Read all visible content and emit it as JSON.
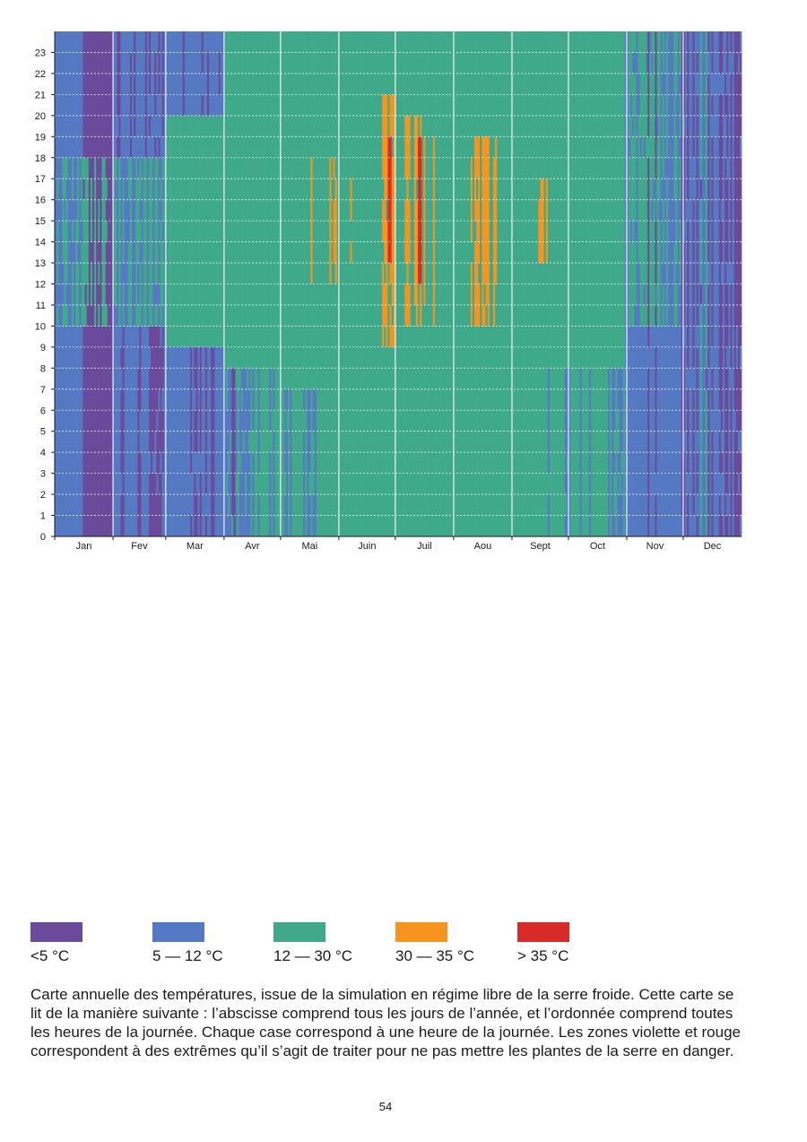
{
  "chart_data": {
    "type": "heatmap",
    "title": "",
    "xlabel": "",
    "ylabel": "",
    "x_categories": [
      "Jan",
      "Fev",
      "Mar",
      "Avr",
      "Mai",
      "Juin",
      "Juil",
      "Aou",
      "Sept",
      "Oct",
      "Nov",
      "Dec"
    ],
    "y_ticks": [
      0,
      1,
      2,
      3,
      4,
      5,
      6,
      7,
      8,
      9,
      10,
      11,
      12,
      13,
      14,
      15,
      16,
      17,
      18,
      19,
      20,
      21,
      22,
      23
    ],
    "x_range": [
      1,
      365
    ],
    "y_range": [
      0,
      23
    ],
    "grid": "vertical solid lines between months, horizontal dotted lines at each hour",
    "legend_position": "below",
    "classes": [
      {
        "label": "<5 °C",
        "color": "#6b4a9b"
      },
      {
        "label": "5 — 12 °C",
        "color": "#5579c2"
      },
      {
        "label": "12 — 30 °C",
        "color": "#3fa98a"
      },
      {
        "label": "30 — 35 °C",
        "color": "#f5941f"
      },
      {
        "label": "> 35 °C",
        "color": "#d92a2a"
      }
    ],
    "regions": [
      {
        "class": 1,
        "day_start": 1,
        "day_end": 16,
        "hour_start": 0,
        "hour_end": 23
      },
      {
        "class": 0,
        "day_start": 16,
        "day_end": 31,
        "hour_start": 0,
        "hour_end": 23
      },
      {
        "class": 2,
        "day_start": 1,
        "day_end": 31,
        "hour_start": 10,
        "hour_end": 17,
        "density": 0.45
      },
      {
        "class": 0,
        "day_start": 17,
        "day_end": 31,
        "hour_start": 10,
        "hour_end": 17,
        "density": 0.25
      },
      {
        "class": 1,
        "day_start": 32,
        "day_end": 59,
        "hour_start": 0,
        "hour_end": 23
      },
      {
        "class": 0,
        "day_start": 32,
        "day_end": 59,
        "hour_start": 0,
        "hour_end": 9,
        "density": 0.55
      },
      {
        "class": 0,
        "day_start": 32,
        "day_end": 59,
        "hour_start": 18,
        "hour_end": 23,
        "density": 0.2
      },
      {
        "class": 2,
        "day_start": 32,
        "day_end": 59,
        "hour_start": 10,
        "hour_end": 17,
        "density": 0.6
      },
      {
        "class": 2,
        "day_start": 60,
        "day_end": 90,
        "hour_start": 9,
        "hour_end": 19
      },
      {
        "class": 1,
        "day_start": 60,
        "day_end": 90,
        "hour_start": 0,
        "hour_end": 8
      },
      {
        "class": 0,
        "day_start": 70,
        "day_end": 90,
        "hour_start": 0,
        "hour_end": 8,
        "density": 0.35
      },
      {
        "class": 1,
        "day_start": 60,
        "day_end": 90,
        "hour_start": 20,
        "hour_end": 23
      },
      {
        "class": 0,
        "day_start": 60,
        "day_end": 90,
        "hour_start": 20,
        "hour_end": 23,
        "density": 0.15
      },
      {
        "class": 2,
        "day_start": 91,
        "day_end": 120,
        "hour_start": 7,
        "hour_end": 23
      },
      {
        "class": 1,
        "day_start": 91,
        "day_end": 120,
        "hour_start": 0,
        "hour_end": 7,
        "density": 0.55
      },
      {
        "class": 0,
        "day_start": 91,
        "day_end": 100,
        "hour_start": 0,
        "hour_end": 7,
        "density": 0.3
      },
      {
        "class": 2,
        "day_start": 121,
        "day_end": 303,
        "hour_start": 0,
        "hour_end": 23
      },
      {
        "class": 1,
        "day_start": 121,
        "day_end": 140,
        "hour_start": 0,
        "hour_end": 6,
        "density": 0.3
      },
      {
        "class": 1,
        "day_start": 263,
        "day_end": 303,
        "hour_start": 0,
        "hour_end": 7,
        "density": 0.2
      },
      {
        "class": 3,
        "day_start": 136,
        "day_end": 160,
        "hour_start": 12,
        "hour_end": 17,
        "density": 0.25
      },
      {
        "class": 3,
        "day_start": 175,
        "day_end": 181,
        "hour_start": 9,
        "hour_end": 20,
        "density": 0.6
      },
      {
        "class": 3,
        "day_start": 187,
        "day_end": 197,
        "hour_start": 10,
        "hour_end": 19,
        "density": 0.7
      },
      {
        "class": 3,
        "day_start": 197,
        "day_end": 210,
        "hour_start": 10,
        "hour_end": 18,
        "density": 0.25
      },
      {
        "class": 3,
        "day_start": 222,
        "day_end": 236,
        "hour_start": 10,
        "hour_end": 18,
        "density": 0.75
      },
      {
        "class": 3,
        "day_start": 236,
        "day_end": 244,
        "hour_start": 11,
        "hour_end": 17,
        "density": 0.25
      },
      {
        "class": 3,
        "day_start": 258,
        "day_end": 262,
        "hour_start": 13,
        "hour_end": 16,
        "density": 0.5
      },
      {
        "class": 4,
        "day_start": 178,
        "day_end": 179,
        "hour_start": 13,
        "hour_end": 18
      },
      {
        "class": 4,
        "day_start": 194,
        "day_end": 195,
        "hour_start": 12,
        "hour_end": 18
      },
      {
        "class": 1,
        "day_start": 304,
        "day_end": 334,
        "hour_start": 0,
        "hour_end": 23
      },
      {
        "class": 2,
        "day_start": 304,
        "day_end": 334,
        "hour_start": 10,
        "hour_end": 23,
        "density": 0.65
      },
      {
        "class": 0,
        "day_start": 304,
        "day_end": 334,
        "hour_start": 0,
        "hour_end": 23,
        "density": 0.08
      },
      {
        "class": 1,
        "day_start": 335,
        "day_end": 365,
        "hour_start": 0,
        "hour_end": 23
      },
      {
        "class": 0,
        "day_start": 335,
        "day_end": 365,
        "hour_start": 0,
        "hour_end": 23,
        "density": 0.5
      },
      {
        "class": 2,
        "day_start": 335,
        "day_end": 365,
        "hour_start": 0,
        "hour_end": 23,
        "density": 0.12
      }
    ]
  },
  "legend": {
    "items": [
      {
        "label": "<5 °C",
        "color": "#6b4a9b"
      },
      {
        "label": "5 — 12 °C",
        "color": "#5579c2"
      },
      {
        "label": "12 — 30 °C",
        "color": "#3fa98a"
      },
      {
        "label": "30 — 35 °C",
        "color": "#f5941f"
      },
      {
        "label": "> 35 °C",
        "color": "#d92a2a"
      }
    ]
  },
  "caption": "Carte annuelle des températures, issue de la simulation en régime libre de la serre froide. Cette carte se lit de la manière suivante : l’abscisse comprend tous les jours de l’année, et l’ordonnée comprend toutes les heures de la journée. Chaque case correspond à une heure de la journée. Les zones violette et rouge correspondent à des extrêmes qu’il s’agit de traiter pour ne pas mettre les plantes de la serre en danger.",
  "page_number": "54"
}
